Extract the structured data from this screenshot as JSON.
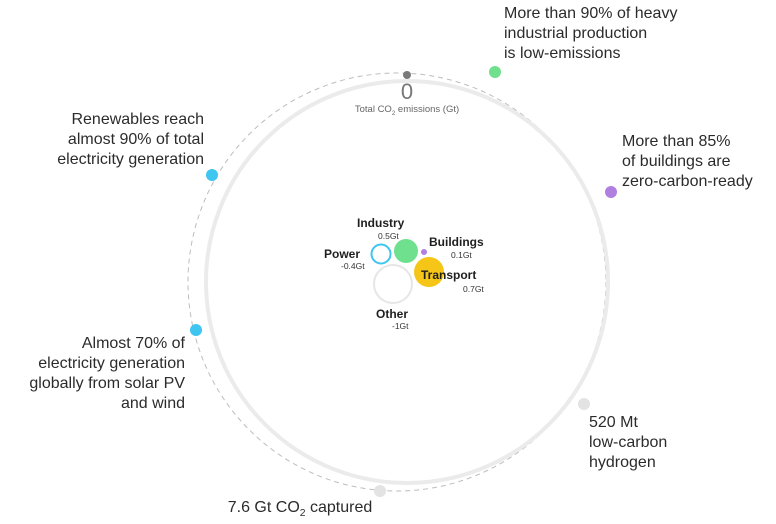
{
  "total": {
    "value": "0",
    "label_pre": "Total CO",
    "label_sub": "2",
    "label_post": " emissions (Gt)"
  },
  "milestones": [
    {
      "lines": [
        "More than 90% of heavy",
        "industrial production",
        "is low-emissions"
      ],
      "color": "#6ee08e"
    },
    {
      "lines": [
        "More than 85%",
        "of buildings are",
        "zero-carbon-ready"
      ],
      "color": "#b07fe0"
    },
    {
      "lines": [
        "520 Mt",
        "low-carbon",
        "hydrogen"
      ],
      "color": "#e3e3e3"
    },
    {
      "pre": "7.6 Gt CO",
      "sub": "2",
      "post": " captured",
      "color": "#e3e3e3"
    },
    {
      "lines": [
        "Almost 70% of",
        "electricity generation",
        "globally from solar PV",
        "and wind"
      ],
      "color": "#3fc6f0"
    },
    {
      "lines": [
        "Renewables reach",
        "almost 90% of total",
        "electricity generation"
      ],
      "color": "#3fc6f0"
    }
  ],
  "sectors": [
    {
      "name": "Industry",
      "value": "0.5Gt",
      "color": "#6ee08e"
    },
    {
      "name": "Buildings",
      "value": "0.1Gt",
      "color": "#b07fe0"
    },
    {
      "name": "Power",
      "value": "-0.4Gt",
      "color": "#3fc6f0"
    },
    {
      "name": "Transport",
      "value": "0.7Gt",
      "color": "#f5c518"
    },
    {
      "name": "Other",
      "value": "-1Gt",
      "color": "#e6e6e6"
    }
  ],
  "colors": {
    "ring": "#ebebeb",
    "dashed_ring": "#bdbdbd",
    "zero_marker": "#7a7a7a"
  }
}
